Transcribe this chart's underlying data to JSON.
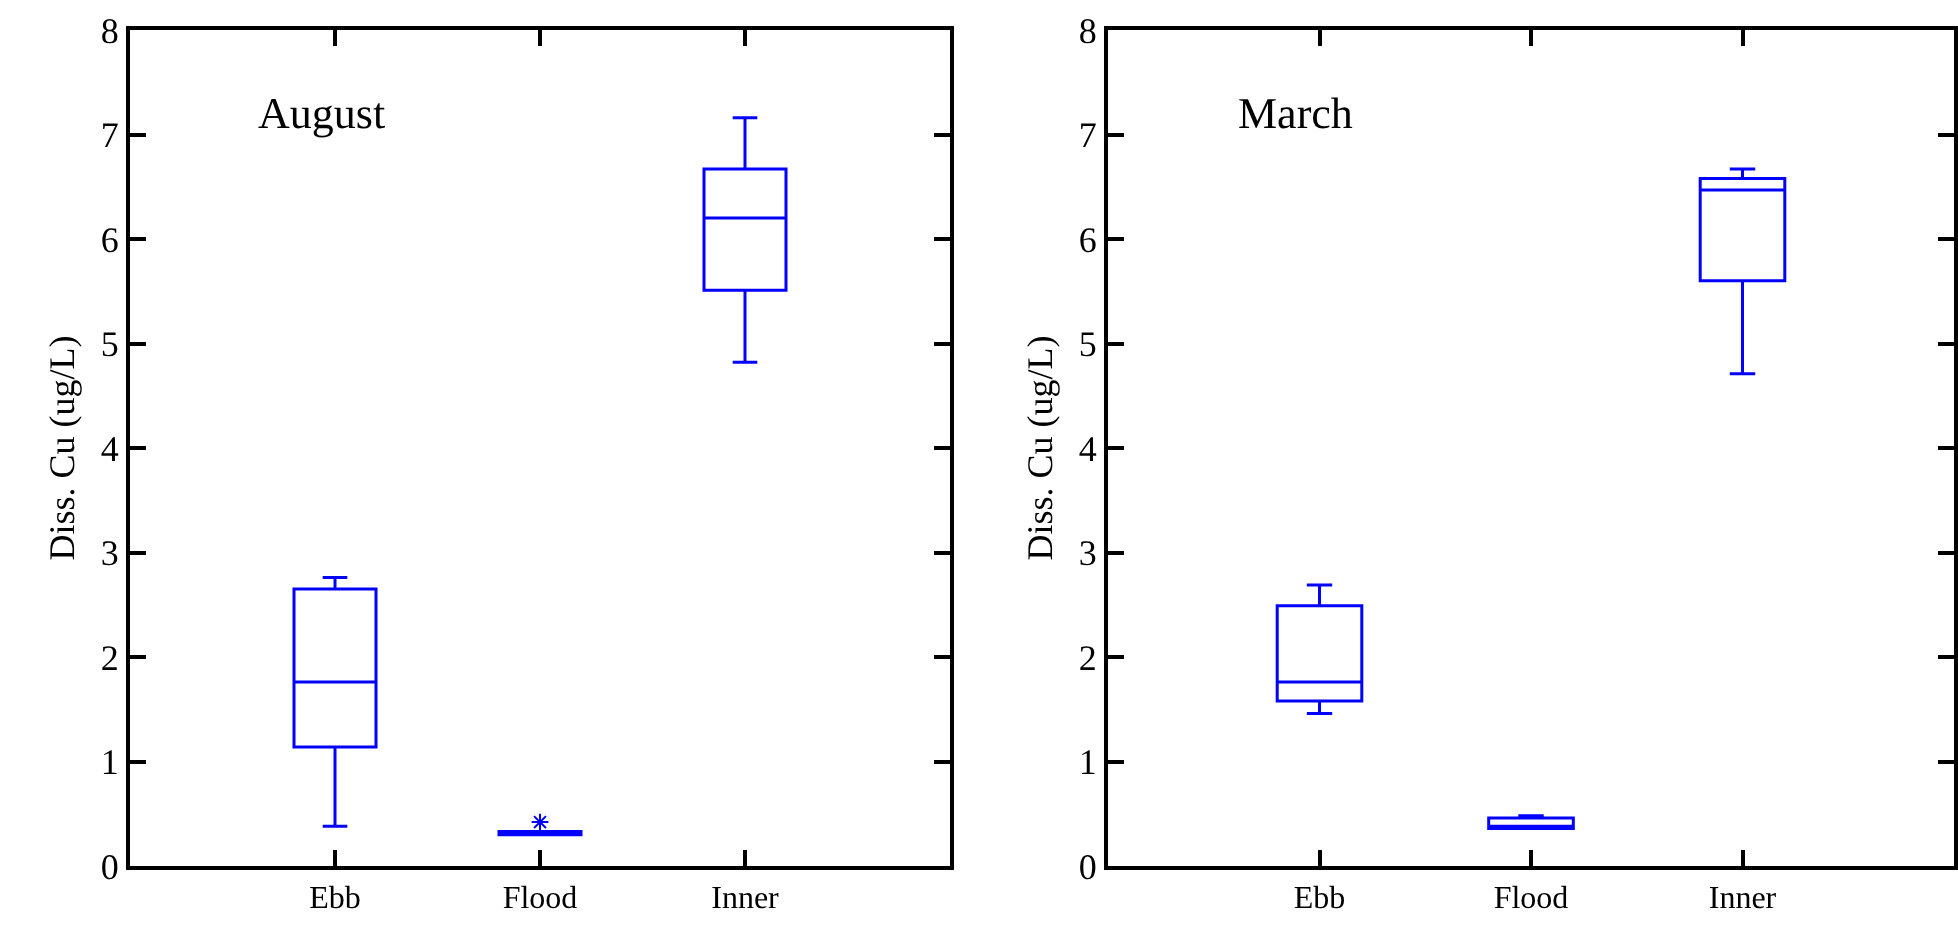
{
  "chart_data": [
    {
      "type": "box",
      "ylabel": "Diss. Cu (ug/L)",
      "annotations": [
        "August"
      ],
      "categories": [
        "Ebb",
        "Flood",
        "Inner"
      ],
      "color": "#0000ff",
      "ylim": [
        0,
        8
      ],
      "yticks": [
        0,
        1,
        2,
        3,
        4,
        5,
        6,
        7,
        8
      ],
      "boxes": [
        {
          "low": 0.38,
          "q1": 1.14,
          "median": 1.76,
          "q3": 2.65,
          "high": 2.76
        },
        {
          "low": 0.3,
          "q1": 0.3,
          "median": 0.31,
          "q3": 0.33,
          "high": 0.33,
          "outliers": [
            0.42
          ]
        },
        {
          "low": 4.82,
          "q1": 5.51,
          "median": 6.2,
          "q3": 6.67,
          "high": 7.16
        }
      ]
    },
    {
      "type": "box",
      "ylabel": "Diss. Cu (ug/L)",
      "annotations": [
        "March"
      ],
      "categories": [
        "Ebb",
        "Flood",
        "Inner"
      ],
      "color": "#0000ff",
      "ylim": [
        0,
        8
      ],
      "yticks": [
        0,
        1,
        2,
        3,
        4,
        5,
        6,
        7,
        8
      ],
      "boxes": [
        {
          "low": 1.46,
          "q1": 1.58,
          "median": 1.76,
          "q3": 2.49,
          "high": 2.69
        },
        {
          "low": 0.36,
          "q1": 0.36,
          "median": 0.38,
          "q3": 0.46,
          "high": 0.48
        },
        {
          "low": 4.71,
          "q1": 5.6,
          "median": 6.47,
          "q3": 6.58,
          "high": 6.67
        }
      ]
    }
  ]
}
